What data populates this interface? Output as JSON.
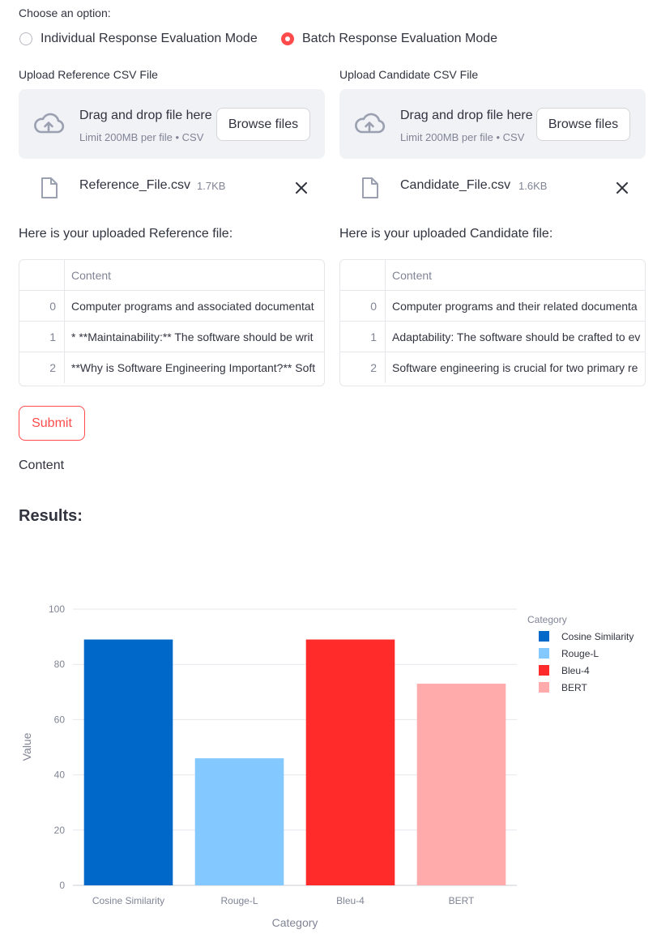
{
  "mode": {
    "prompt": "Choose an option:",
    "options": [
      "Individual Response Evaluation Mode",
      "Batch Response Evaluation Mode"
    ],
    "selected": "Batch Response Evaluation Mode"
  },
  "reference_upload": {
    "label": "Upload Reference CSV File",
    "drop_title": "Drag and drop file here",
    "drop_limit": "Limit 200MB per file • CSV",
    "browse_label": "Browse files",
    "file_name": "Reference_File.csv",
    "file_size": "1.7KB",
    "preview_heading": "Here is your uploaded Reference file:",
    "column": "Content",
    "rows": [
      {
        "index": "0",
        "content": "Computer programs and associated documentat"
      },
      {
        "index": "1",
        "content": "* **Maintainability:** The software should be writ"
      },
      {
        "index": "2",
        "content": "**Why is Software Engineering Important?**  Soft"
      }
    ]
  },
  "candidate_upload": {
    "label": "Upload Candidate CSV File",
    "drop_title": "Drag and drop file here",
    "drop_limit": "Limit 200MB per file • CSV",
    "browse_label": "Browse files",
    "file_name": "Candidate_File.csv",
    "file_size": "1.6KB",
    "preview_heading": "Here is your uploaded Candidate file:",
    "column": "Content",
    "rows": [
      {
        "index": "0",
        "content": "Computer programs and their related documenta"
      },
      {
        "index": "1",
        "content": "Adaptability: The software should be crafted to ev"
      },
      {
        "index": "2",
        "content": "Software engineering is crucial for two primary re"
      }
    ]
  },
  "submit_label": "Submit",
  "content_text": "Content",
  "results_heading": "Results:",
  "chart_data": {
    "type": "bar",
    "categories": [
      "Cosine Similarity",
      "Rouge-L",
      "Bleu-4",
      "BERT"
    ],
    "values": [
      89,
      46,
      89,
      73
    ],
    "colors": [
      "#0068c9",
      "#83c9ff",
      "#ff2b2b",
      "#ffabab"
    ],
    "xlabel": "Category",
    "ylabel": "Value",
    "ylim": [
      0,
      100
    ],
    "yticks": [
      0,
      20,
      40,
      60,
      80,
      100
    ],
    "legend_title": "Category",
    "legend_position": "top-right",
    "grid": true
  }
}
